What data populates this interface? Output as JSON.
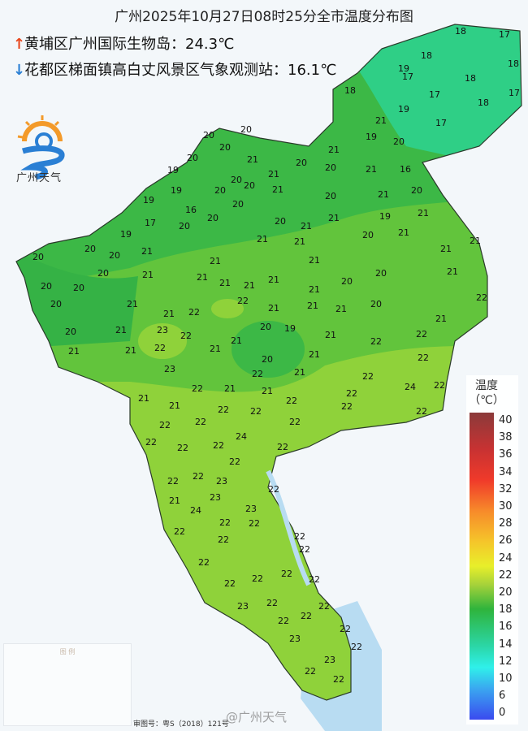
{
  "title": "广州2025年10月27日08时25分全市温度分布图",
  "extremes": {
    "max": {
      "icon": "arrow-up-icon",
      "color": "#e8481e",
      "label": "黄埔区广州国际生物岛：",
      "value": "24.3℃"
    },
    "min": {
      "icon": "arrow-down-icon",
      "color": "#2a7fd4",
      "label": "花都区梯面镇高白丈风景区气象观测站：",
      "value": "16.1℃"
    }
  },
  "logo": {
    "text": "广州天气"
  },
  "legend": {
    "title_line1": "温度",
    "title_line2": "（℃）",
    "ticks": [
      "40",
      "38",
      "36",
      "34",
      "32",
      "30",
      "28",
      "26",
      "24",
      "22",
      "20",
      "18",
      "16",
      "14",
      "12",
      "10",
      "6",
      "0"
    ]
  },
  "map_legend": {
    "title": "图 例"
  },
  "approval": "审图号：粤S（2018）121号",
  "watermark": "@广州天气",
  "colors": {
    "dark_green": "#3cb846",
    "mid_green": "#62c43c",
    "yellow_green": "#8fd23a",
    "teal": "#2fcf86",
    "water": "#b8dcf2"
  },
  "stations": [
    "18",
    "17",
    "18",
    "19",
    "18",
    "18",
    "17",
    "17",
    "17",
    "18",
    "19",
    "18",
    "17",
    "21",
    "19",
    "20",
    "21",
    "20",
    "20",
    "20",
    "20",
    "21",
    "20",
    "20",
    "21",
    "16",
    "19",
    "21",
    "20",
    "20",
    "20",
    "21",
    "19",
    "19",
    "16",
    "20",
    "21",
    "20",
    "20",
    "20",
    "20",
    "21",
    "19",
    "21",
    "17",
    "20",
    "19",
    "21",
    "21",
    "20",
    "21",
    "20",
    "20",
    "20",
    "21",
    "21",
    "21",
    "21",
    "21",
    "21",
    "20",
    "20",
    "21",
    "21",
    "21",
    "21",
    "20",
    "20",
    "20",
    "21",
    "21",
    "21",
    "22",
    "20",
    "21",
    "22",
    "22",
    "21",
    "21",
    "21",
    "20",
    "21",
    "21",
    "20",
    "21",
    "23",
    "22",
    "21",
    "20",
    "19",
    "21",
    "22",
    "22",
    "21",
    "21",
    "22",
    "21",
    "20",
    "21",
    "21",
    "22",
    "23",
    "22",
    "21",
    "22",
    "22",
    "22",
    "24",
    "22",
    "21",
    "21",
    "22",
    "21",
    "22",
    "22",
    "22",
    "22",
    "22",
    "22",
    "22",
    "22",
    "22",
    "22",
    "24",
    "22",
    "22",
    "22",
    "22",
    "23",
    "22",
    "23",
    "21",
    "23",
    "24",
    "22",
    "22",
    "22",
    "22",
    "22",
    "22",
    "22",
    "22",
    "22",
    "22",
    "22",
    "22",
    "22",
    "23",
    "22",
    "22",
    "22",
    "23",
    "22",
    "23",
    "22",
    "22",
    "23"
  ]
}
